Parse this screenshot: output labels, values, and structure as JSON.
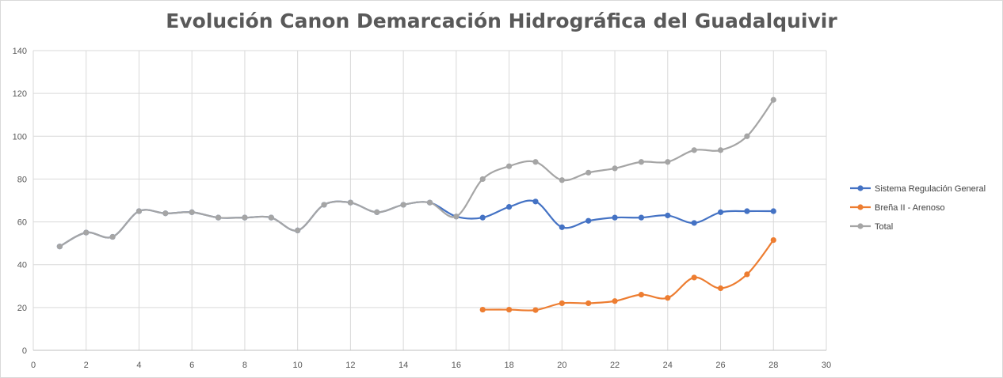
{
  "chart_data": {
    "type": "line",
    "title": "Evolución Canon Demarcación Hidrográfica del Guadalquivir",
    "xlabel": "",
    "ylabel": "",
    "xlim": [
      0,
      30
    ],
    "ylim": [
      0,
      140
    ],
    "x_ticks": [
      "0",
      "2",
      "4",
      "6",
      "8",
      "10",
      "12",
      "14",
      "16",
      "18",
      "20",
      "22",
      "24",
      "26",
      "28",
      "30"
    ],
    "y_ticks": [
      "0",
      "20",
      "40",
      "60",
      "80",
      "100",
      "120",
      "140"
    ],
    "grid": true,
    "smooth": true,
    "legend_position": "right",
    "series": [
      {
        "name": "Sistema Regulación General",
        "color": "#4472c4",
        "x": [
          1,
          2,
          3,
          4,
          5,
          6,
          7,
          8,
          9,
          10,
          11,
          12,
          13,
          14,
          15,
          16,
          17,
          18,
          19,
          20,
          21,
          22,
          23,
          24,
          25,
          26,
          27,
          28
        ],
        "y": [
          48.5,
          55,
          53,
          65,
          64,
          64.5,
          62,
          62,
          62,
          56,
          68,
          69,
          64.5,
          68,
          69,
          62.5,
          62,
          67,
          69.5,
          57.5,
          60.5,
          62,
          62,
          63,
          59.5,
          64.5,
          65,
          65
        ]
      },
      {
        "name": "Breña II - Arenoso",
        "color": "#ed7d31",
        "x": [
          17,
          18,
          19,
          20,
          21,
          22,
          23,
          24,
          25,
          26,
          27,
          28
        ],
        "y": [
          19,
          19,
          18.8,
          22,
          22,
          23,
          26,
          24.5,
          34,
          29,
          35.5,
          51.5
        ]
      },
      {
        "name": "Total",
        "color": "#a5a5a5",
        "x": [
          1,
          2,
          3,
          4,
          5,
          6,
          7,
          8,
          9,
          10,
          11,
          12,
          13,
          14,
          15,
          16,
          17,
          18,
          19,
          20,
          21,
          22,
          23,
          24,
          25,
          26,
          27,
          28
        ],
        "y": [
          48.5,
          55,
          53,
          65,
          64,
          64.5,
          62,
          62,
          62,
          56,
          68,
          69,
          64.5,
          68,
          69,
          62.5,
          80,
          86,
          88,
          79.5,
          83,
          85,
          88,
          88,
          93.5,
          93.5,
          100,
          117
        ]
      }
    ]
  }
}
